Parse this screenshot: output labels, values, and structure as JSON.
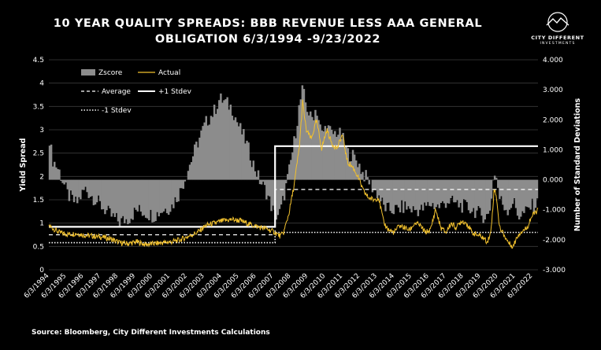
{
  "header": {
    "title_line1": "10 YEAR QUALITY SPREADS: BBB REVENUE LESS AAA GENERAL",
    "title_line2": "OBLIGATION 6/3/1994 -9/23/2022"
  },
  "logo": {
    "name": "CITY DIFFERENT",
    "sub": "INVESTMENTS"
  },
  "footer": {
    "source": "Source: Bloomberg, City Different Investments Calculations"
  },
  "colors": {
    "background": "#000000",
    "zscore": "#8c8c8c",
    "actual": "#f2c12e",
    "lines": "#ffffff"
  },
  "chart_data": {
    "type": "line",
    "title": "10 YEAR QUALITY SPREADS: BBB REVENUE LESS AAA GENERAL OBLIGATION 6/3/1994 -9/23/2022",
    "ylabel": "Yield Spread",
    "y2label": "Number of Standard Deviations",
    "ylim": [
      0,
      4.5
    ],
    "y2lim": [
      -3.0,
      4.0
    ],
    "y_ticks": [
      "0",
      "0.5",
      "1",
      "1.5",
      "2",
      "2.5",
      "3",
      "3.5",
      "4",
      "4.5"
    ],
    "y2_ticks": [
      "-3.000",
      "-2.000",
      "-1.000",
      "0.000",
      "1.000",
      "2.000",
      "3.000",
      "4.000"
    ],
    "x_ticks": [
      "6/3/1994",
      "6/3/1995",
      "6/3/1996",
      "6/3/1997",
      "6/3/1998",
      "6/3/1999",
      "6/3/2000",
      "6/3/2001",
      "6/3/2002",
      "6/3/2003",
      "6/3/2004",
      "6/3/2005",
      "6/3/2006",
      "6/3/2007",
      "6/3/2008",
      "6/3/2009",
      "6/3/2010",
      "6/3/2011",
      "6/3/2012",
      "6/3/2013",
      "6/3/2014",
      "6/3/2015",
      "6/3/2016",
      "6/3/2017",
      "6/3/2018",
      "6/3/2019",
      "6/3/2020",
      "6/3/2021",
      "6/3/2022"
    ],
    "grid": "horizontal",
    "legend": [
      {
        "name": "Zscore",
        "style": "area"
      },
      {
        "name": "Actual",
        "style": "line"
      },
      {
        "name": "Average",
        "style": "dashed"
      },
      {
        "name": "+1 Stdev",
        "style": "solid"
      },
      {
        "name": "-1 Stdev",
        "style": "dotted"
      }
    ],
    "legend_position": "top-left",
    "series": [
      {
        "name": "Actual",
        "axis": "left",
        "x": [
          1994.4,
          1995.0,
          1995.5,
          1996.0,
          1996.5,
          1997.0,
          1997.5,
          1998.0,
          1998.5,
          1999.0,
          1999.5,
          2000.0,
          2000.5,
          2001.0,
          2001.5,
          2002.0,
          2002.5,
          2003.0,
          2003.5,
          2004.0,
          2004.5,
          2005.0,
          2005.5,
          2006.0,
          2006.5,
          2007.0,
          2007.5,
          2007.8,
          2008.0,
          2008.3,
          2008.6,
          2008.9,
          2009.1,
          2009.3,
          2009.6,
          2009.9,
          2010.2,
          2010.5,
          2010.8,
          2011.1,
          2011.4,
          2011.7,
          2012.0,
          2012.3,
          2012.6,
          2012.9,
          2013.2,
          2013.5,
          2013.8,
          2014.1,
          2014.4,
          2014.7,
          2015.0,
          2015.3,
          2015.6,
          2015.9,
          2016.2,
          2016.5,
          2016.8,
          2017.1,
          2017.4,
          2017.7,
          2018.0,
          2018.3,
          2018.6,
          2018.9,
          2019.2,
          2019.5,
          2019.8,
          2020.0,
          2020.2,
          2020.35,
          2020.5,
          2020.7,
          2020.9,
          2021.1,
          2021.3,
          2021.5,
          2021.7,
          2021.9,
          2022.1,
          2022.3,
          2022.5,
          2022.73
        ],
        "values": [
          0.95,
          0.8,
          0.76,
          0.78,
          0.74,
          0.72,
          0.7,
          0.66,
          0.58,
          0.56,
          0.6,
          0.54,
          0.56,
          0.58,
          0.6,
          0.64,
          0.72,
          0.8,
          0.95,
          1.0,
          1.05,
          1.08,
          1.05,
          0.98,
          0.92,
          0.88,
          0.8,
          0.72,
          0.8,
          1.2,
          1.8,
          2.6,
          3.6,
          3.0,
          2.8,
          3.2,
          2.6,
          3.0,
          2.7,
          2.6,
          2.9,
          2.3,
          2.2,
          2.0,
          1.7,
          1.55,
          1.5,
          1.55,
          1.0,
          0.85,
          0.8,
          0.95,
          0.9,
          0.85,
          1.0,
          0.95,
          0.8,
          0.85,
          1.3,
          0.9,
          0.8,
          1.0,
          0.9,
          1.05,
          1.0,
          0.8,
          0.75,
          0.7,
          0.6,
          0.8,
          1.75,
          1.5,
          0.9,
          0.8,
          0.65,
          0.55,
          0.5,
          0.7,
          0.8,
          0.85,
          0.9,
          1.1,
          1.2,
          1.28
        ]
      },
      {
        "name": "Zscore",
        "axis": "right",
        "x": [
          1994.4,
          1994.6,
          1995.0,
          1995.5,
          1996.0,
          1996.5,
          1997.0,
          1997.5,
          1998.0,
          1998.5,
          1999.0,
          1999.5,
          2000.0,
          2000.5,
          2001.0,
          2001.5,
          2002.0,
          2002.5,
          2003.0,
          2003.5,
          2004.0,
          2004.3,
          2004.6,
          2005.0,
          2005.4,
          2005.8,
          2006.2,
          2006.6,
          2007.0,
          2007.5,
          2007.8,
          2008.0,
          2008.3,
          2008.6,
          2008.9,
          2009.1,
          2009.3,
          2009.6,
          2009.9,
          2010.2,
          2010.5,
          2010.8,
          2011.1,
          2011.4,
          2011.7,
          2012.0,
          2012.3,
          2012.6,
          2012.9,
          2013.2,
          2013.5,
          2013.8,
          2014.1,
          2014.5,
          2015.0,
          2015.5,
          2016.0,
          2016.5,
          2017.0,
          2017.5,
          2018.0,
          2018.5,
          2019.0,
          2019.5,
          2019.9,
          2020.2,
          2020.35,
          2020.5,
          2020.8,
          2021.0,
          2021.3,
          2021.6,
          2022.0,
          2022.3,
          2022.73
        ],
        "values": [
          1.6,
          0.7,
          0.3,
          -0.5,
          -0.8,
          -0.3,
          -0.6,
          -0.9,
          -1.2,
          -1.4,
          -1.3,
          -1.0,
          -1.1,
          -1.2,
          -1.0,
          -0.9,
          -0.4,
          0.4,
          1.2,
          1.9,
          2.3,
          2.7,
          2.6,
          2.4,
          1.8,
          1.3,
          0.6,
          0.0,
          -0.4,
          -1.2,
          -1.1,
          -0.6,
          0.2,
          1.2,
          2.4,
          3.0,
          2.5,
          2.0,
          2.4,
          1.5,
          1.8,
          1.5,
          1.6,
          1.4,
          0.9,
          0.8,
          0.6,
          0.2,
          0.0,
          -0.3,
          -0.5,
          -0.9,
          -1.0,
          -1.0,
          -0.9,
          -1.0,
          -1.0,
          -0.8,
          -0.9,
          -0.7,
          -0.8,
          -0.9,
          -1.0,
          -1.2,
          -1.2,
          0.3,
          0.0,
          -0.6,
          -0.9,
          -1.0,
          -0.7,
          -1.2,
          -1.1,
          -0.9,
          -0.8
        ]
      },
      {
        "name": "Average",
        "axis": "left",
        "x": [
          1994.4,
          2007.5,
          2007.5,
          2022.73
        ],
        "values": [
          0.75,
          0.75,
          1.72,
          1.72
        ]
      },
      {
        "name": "+1 Stdev",
        "axis": "left",
        "x": [
          1994.4,
          2007.5,
          2007.5,
          2022.73
        ],
        "values": [
          0.92,
          0.92,
          2.65,
          2.65
        ]
      },
      {
        "name": "-1 Stdev",
        "axis": "left",
        "x": [
          1994.4,
          2007.5,
          2007.5,
          2022.73
        ],
        "values": [
          0.58,
          0.58,
          0.8,
          0.8
        ]
      }
    ]
  }
}
